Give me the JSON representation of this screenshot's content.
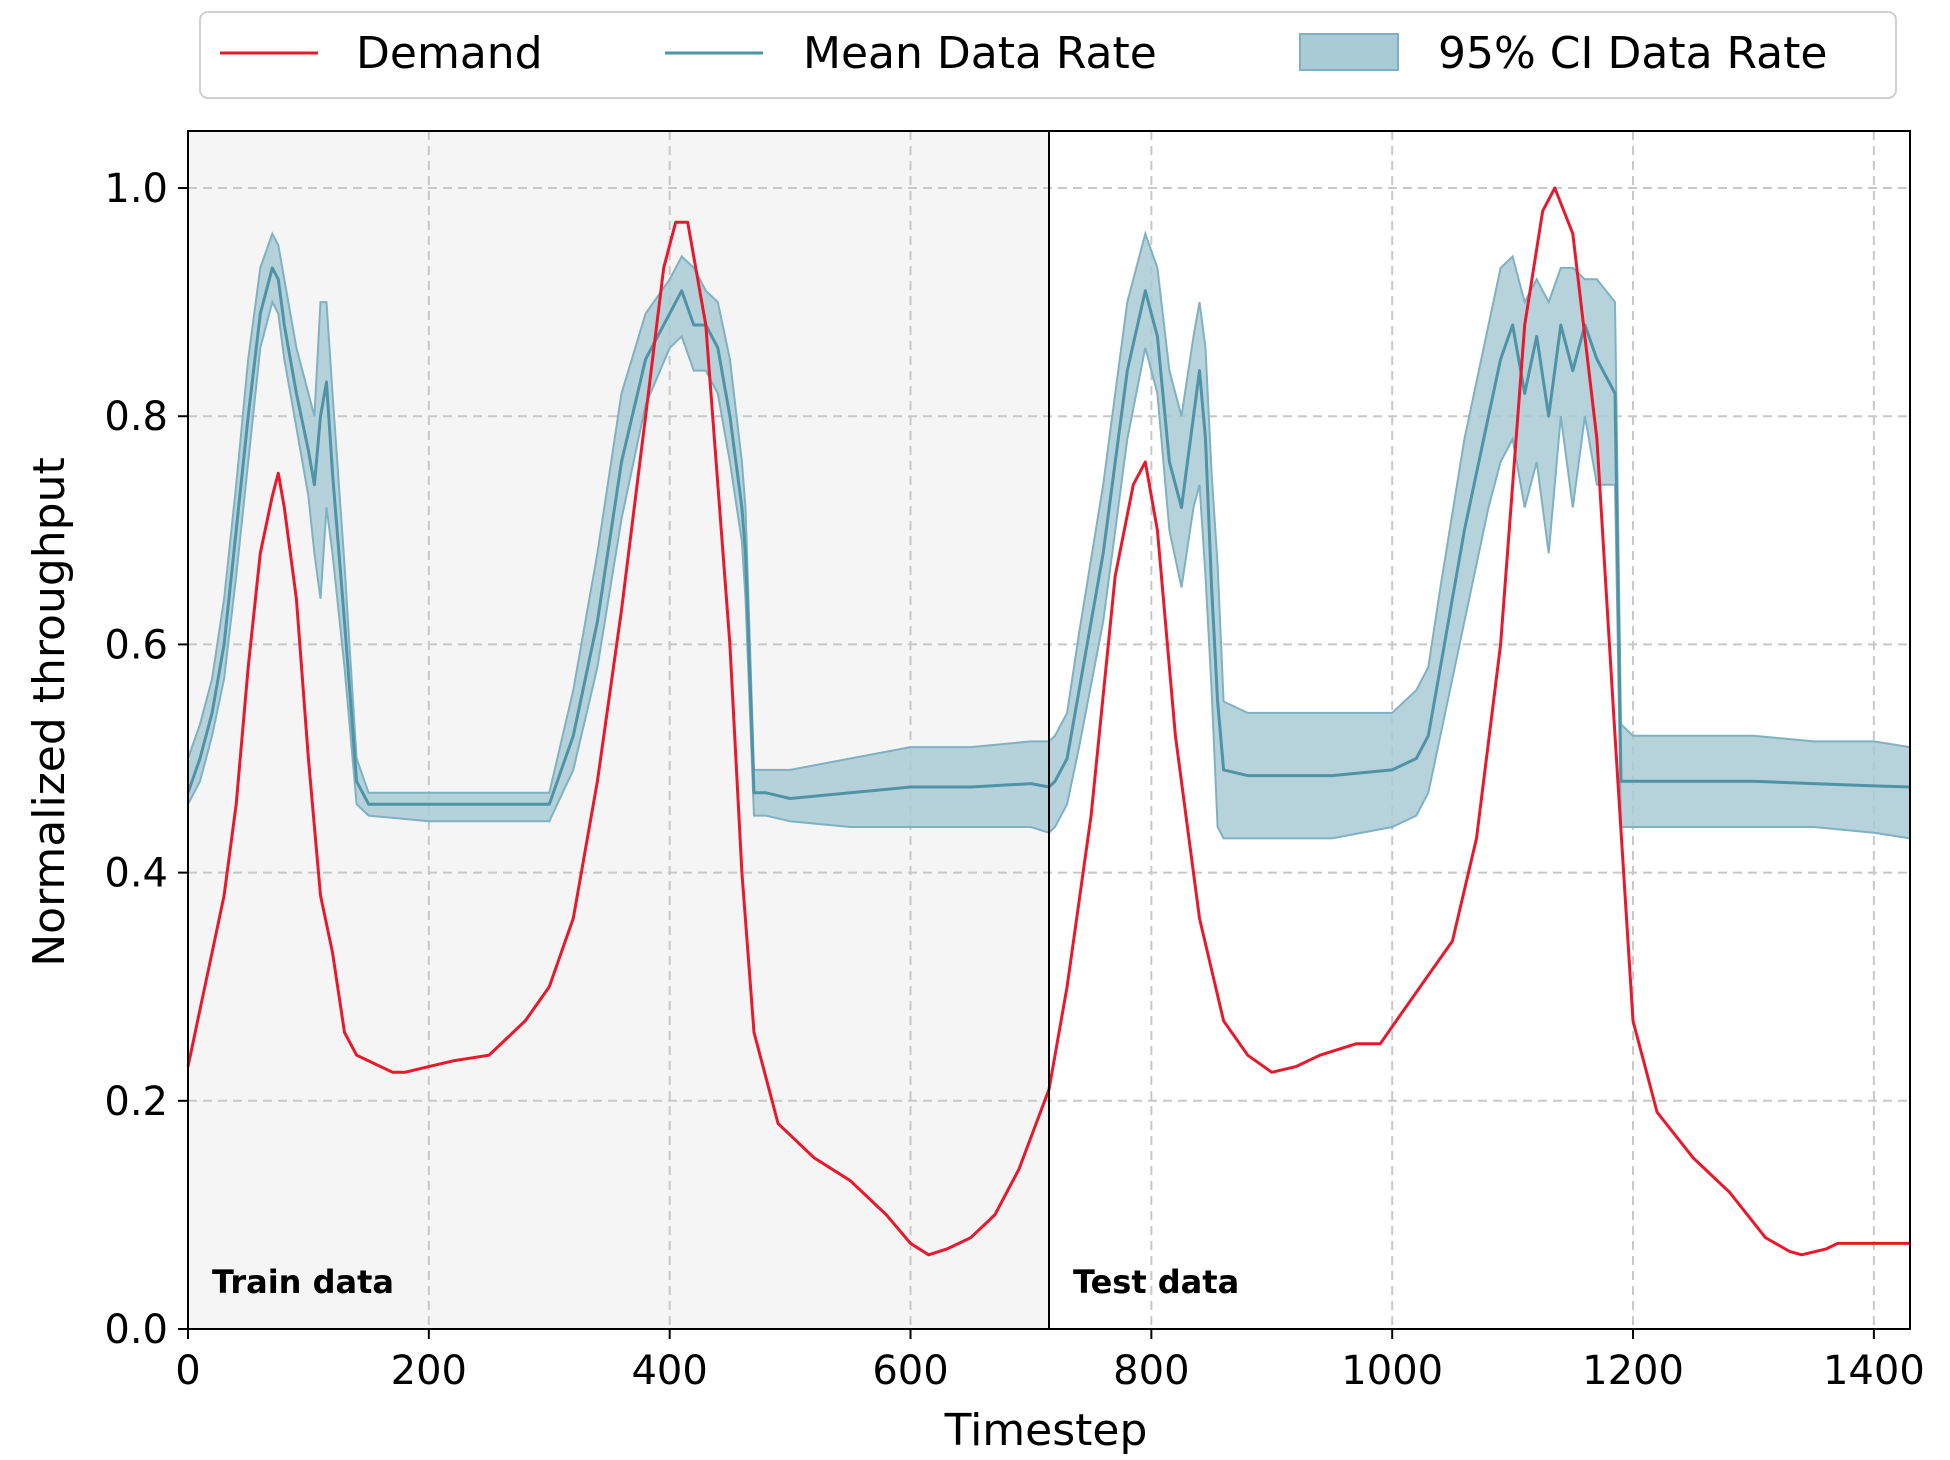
{
  "colors": {
    "demand": "#e8192c",
    "mean": "#4f93a6",
    "ci_fill": "#a9cbd6",
    "ci_edge": "#7fb1c2",
    "train_bg": "#f5f5f5"
  },
  "chart_data": {
    "type": "line",
    "xlabel": "Timestep",
    "ylabel": "Normalized throughput",
    "xlim": [
      0,
      1430
    ],
    "ylim": [
      0,
      1.05
    ],
    "x_ticks": [
      0,
      200,
      400,
      600,
      800,
      1000,
      1200,
      1400
    ],
    "y_ticks": [
      0.0,
      0.2,
      0.4,
      0.6,
      0.8,
      1.0
    ],
    "x_tick_labels": [
      "0",
      "200",
      "400",
      "600",
      "800",
      "1000",
      "1200",
      "1400"
    ],
    "y_tick_labels": [
      "0.0",
      "0.2",
      "0.4",
      "0.6",
      "0.8",
      "1.0"
    ],
    "grid": true,
    "legend_position": "top-center, above plot",
    "regions": [
      {
        "label": "Train data",
        "x_start": 0,
        "x_end": 715
      },
      {
        "label": "Test data",
        "x_start": 715,
        "x_end": 1430
      }
    ],
    "split_x": 715,
    "series": [
      {
        "name": "Demand",
        "style": "line",
        "x": [
          0,
          10,
          20,
          30,
          40,
          50,
          60,
          70,
          75,
          80,
          90,
          100,
          110,
          120,
          130,
          140,
          150,
          170,
          180,
          200,
          220,
          250,
          280,
          300,
          320,
          340,
          360,
          380,
          395,
          405,
          415,
          430,
          450,
          460,
          470,
          490,
          520,
          550,
          580,
          600,
          615,
          630,
          650,
          670,
          690,
          715,
          730,
          750,
          770,
          785,
          795,
          805,
          820,
          840,
          860,
          880,
          900,
          920,
          940,
          970,
          990,
          1010,
          1030,
          1050,
          1070,
          1090,
          1110,
          1125,
          1135,
          1150,
          1170,
          1185,
          1200,
          1220,
          1250,
          1280,
          1310,
          1330,
          1340,
          1360,
          1370,
          1400,
          1430
        ],
        "y": [
          0.23,
          0.28,
          0.33,
          0.38,
          0.46,
          0.58,
          0.68,
          0.73,
          0.75,
          0.72,
          0.64,
          0.5,
          0.38,
          0.33,
          0.26,
          0.24,
          0.235,
          0.225,
          0.225,
          0.23,
          0.235,
          0.24,
          0.27,
          0.3,
          0.36,
          0.48,
          0.63,
          0.8,
          0.93,
          0.97,
          0.97,
          0.88,
          0.6,
          0.4,
          0.26,
          0.18,
          0.15,
          0.13,
          0.1,
          0.075,
          0.065,
          0.07,
          0.08,
          0.1,
          0.14,
          0.21,
          0.3,
          0.45,
          0.66,
          0.74,
          0.76,
          0.7,
          0.52,
          0.36,
          0.27,
          0.24,
          0.225,
          0.23,
          0.24,
          0.25,
          0.25,
          0.28,
          0.31,
          0.34,
          0.43,
          0.6,
          0.88,
          0.98,
          1.0,
          0.96,
          0.78,
          0.52,
          0.27,
          0.19,
          0.15,
          0.12,
          0.08,
          0.068,
          0.065,
          0.07,
          0.075,
          0.075,
          0.075
        ]
      },
      {
        "name": "Mean Data Rate",
        "style": "line",
        "x": [
          0,
          10,
          20,
          30,
          40,
          50,
          60,
          70,
          75,
          80,
          90,
          100,
          105,
          110,
          115,
          120,
          130,
          140,
          150,
          200,
          250,
          300,
          320,
          340,
          360,
          380,
          400,
          410,
          420,
          430,
          440,
          450,
          460,
          463,
          470,
          480,
          500,
          550,
          600,
          650,
          700,
          715,
          720,
          730,
          740,
          760,
          780,
          795,
          805,
          815,
          825,
          835,
          840,
          845,
          850,
          855,
          860,
          880,
          900,
          950,
          1000,
          1020,
          1030,
          1040,
          1060,
          1080,
          1090,
          1100,
          1110,
          1120,
          1130,
          1140,
          1150,
          1160,
          1170,
          1185,
          1190,
          1200,
          1250,
          1300,
          1350,
          1400,
          1430
        ],
        "y": [
          0.47,
          0.5,
          0.54,
          0.6,
          0.7,
          0.8,
          0.89,
          0.93,
          0.92,
          0.88,
          0.82,
          0.77,
          0.74,
          0.8,
          0.83,
          0.75,
          0.62,
          0.48,
          0.46,
          0.46,
          0.46,
          0.46,
          0.52,
          0.62,
          0.76,
          0.85,
          0.89,
          0.91,
          0.88,
          0.88,
          0.86,
          0.8,
          0.72,
          0.68,
          0.47,
          0.47,
          0.465,
          0.47,
          0.475,
          0.475,
          0.478,
          0.475,
          0.48,
          0.5,
          0.56,
          0.68,
          0.84,
          0.91,
          0.87,
          0.76,
          0.72,
          0.8,
          0.84,
          0.78,
          0.65,
          0.55,
          0.49,
          0.485,
          0.485,
          0.485,
          0.49,
          0.5,
          0.52,
          0.58,
          0.7,
          0.8,
          0.85,
          0.88,
          0.82,
          0.87,
          0.8,
          0.88,
          0.84,
          0.88,
          0.85,
          0.82,
          0.48,
          0.48,
          0.48,
          0.48,
          0.478,
          0.476,
          0.475
        ]
      },
      {
        "name": "95% CI Data Rate",
        "style": "band",
        "x": [
          0,
          10,
          20,
          30,
          40,
          50,
          60,
          70,
          75,
          80,
          90,
          100,
          105,
          110,
          115,
          120,
          130,
          140,
          150,
          200,
          250,
          300,
          320,
          340,
          360,
          380,
          400,
          410,
          420,
          430,
          440,
          450,
          460,
          463,
          470,
          480,
          500,
          550,
          600,
          650,
          700,
          715,
          720,
          730,
          740,
          760,
          780,
          795,
          805,
          815,
          825,
          835,
          840,
          845,
          850,
          855,
          860,
          880,
          900,
          950,
          1000,
          1020,
          1030,
          1040,
          1060,
          1080,
          1090,
          1100,
          1110,
          1120,
          1130,
          1140,
          1150,
          1160,
          1170,
          1185,
          1190,
          1200,
          1250,
          1300,
          1350,
          1400,
          1430
        ],
        "lower": [
          0.46,
          0.48,
          0.52,
          0.57,
          0.66,
          0.76,
          0.86,
          0.9,
          0.89,
          0.85,
          0.79,
          0.73,
          0.68,
          0.64,
          0.72,
          0.68,
          0.58,
          0.46,
          0.45,
          0.445,
          0.445,
          0.445,
          0.49,
          0.58,
          0.71,
          0.81,
          0.86,
          0.87,
          0.84,
          0.84,
          0.82,
          0.76,
          0.69,
          0.64,
          0.45,
          0.45,
          0.445,
          0.44,
          0.44,
          0.44,
          0.44,
          0.435,
          0.44,
          0.46,
          0.51,
          0.62,
          0.78,
          0.86,
          0.82,
          0.7,
          0.65,
          0.72,
          0.74,
          0.66,
          0.56,
          0.44,
          0.43,
          0.43,
          0.43,
          0.43,
          0.44,
          0.45,
          0.47,
          0.52,
          0.62,
          0.72,
          0.76,
          0.78,
          0.72,
          0.76,
          0.68,
          0.8,
          0.72,
          0.8,
          0.74,
          0.74,
          0.44,
          0.44,
          0.44,
          0.44,
          0.44,
          0.435,
          0.43
        ],
        "upper": [
          0.5,
          0.53,
          0.57,
          0.64,
          0.74,
          0.85,
          0.93,
          0.96,
          0.95,
          0.92,
          0.86,
          0.82,
          0.8,
          0.9,
          0.9,
          0.82,
          0.67,
          0.5,
          0.47,
          0.47,
          0.47,
          0.47,
          0.56,
          0.68,
          0.82,
          0.89,
          0.92,
          0.94,
          0.93,
          0.91,
          0.9,
          0.85,
          0.76,
          0.72,
          0.49,
          0.49,
          0.49,
          0.5,
          0.51,
          0.51,
          0.515,
          0.515,
          0.52,
          0.54,
          0.61,
          0.74,
          0.9,
          0.96,
          0.93,
          0.84,
          0.8,
          0.87,
          0.9,
          0.86,
          0.75,
          0.67,
          0.55,
          0.54,
          0.54,
          0.54,
          0.54,
          0.56,
          0.58,
          0.65,
          0.78,
          0.88,
          0.93,
          0.94,
          0.9,
          0.92,
          0.9,
          0.93,
          0.93,
          0.92,
          0.92,
          0.9,
          0.53,
          0.52,
          0.52,
          0.52,
          0.515,
          0.515,
          0.51
        ]
      }
    ]
  }
}
